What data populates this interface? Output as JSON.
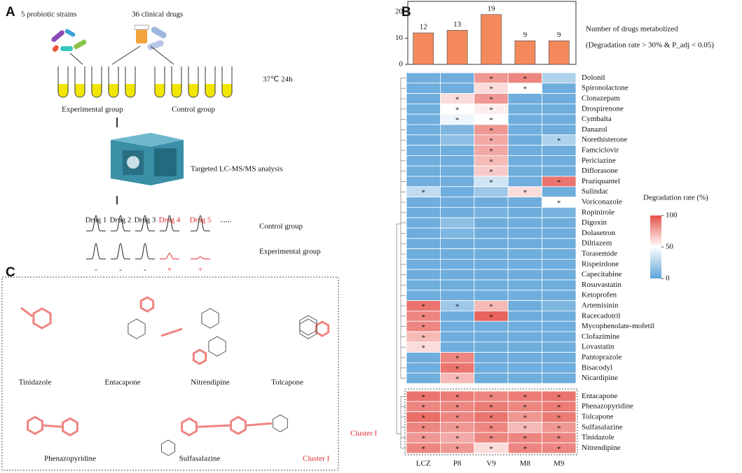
{
  "panels": {
    "a": "A",
    "b": "B",
    "c": "C"
  },
  "panel_a": {
    "strains": "5 probiotic strains",
    "drugs": "36 clinical drugs",
    "condition": "37℃  24h",
    "experimental": "Experimental group",
    "control": "Control group",
    "analysis": "Targeted LC-MS/MS analysis",
    "drug_labels": [
      "Drug 1",
      "Drug 2",
      "Drug 3",
      "Drug 4",
      "Drug 5",
      "......"
    ],
    "row_control": "Control group",
    "row_experimental": "Experimental group",
    "signs": [
      "-",
      "-",
      "-",
      "+",
      "+"
    ]
  },
  "panel_c": {
    "molecules": [
      "Tinidazole",
      "Entacapone",
      "Nitrendipine",
      "Tolcapone",
      "Phenazopyridine",
      "Sulfasalazine"
    ],
    "cluster": "Cluster  I"
  },
  "chart_data": [
    {
      "type": "bar",
      "values": [
        12,
        13,
        19,
        9,
        9
      ],
      "value_labels": [
        "12",
        "13",
        "19",
        "9",
        "9"
      ],
      "color": "#f48a5c",
      "ylim": [
        0,
        24
      ],
      "yticks": [
        0,
        10,
        20
      ],
      "title": "Number of drugs metabolized",
      "subtitle": "(Degradation rate > 30% & P_adj < 0.05)"
    },
    {
      "type": "heatmap",
      "categories": [
        "LCZ",
        "P8",
        "V9",
        "M8",
        "M9"
      ],
      "legend_title": "Degradation rate (%)",
      "clim": [
        0,
        100
      ],
      "colorbar_ticks": [
        0,
        50,
        100
      ],
      "colorscale": [
        "#5ea4d8",
        "#ffffff",
        "#e5524a"
      ],
      "groups": [
        {
          "rows": [
            "Dolonil",
            "Spironolactone",
            "Clonazepam",
            "Drospirenone",
            "Cymbalta",
            "Danazol",
            "Norethisterone",
            "Famciclovir",
            "Periciazine",
            "Diflorasone",
            "Praziquantel",
            "Sulindac",
            "Voriconazole",
            "Ropinirole",
            "Digoxin",
            "Dolasetron",
            "Diltiazem",
            "Torasemide",
            "Rispeirdone",
            "Capecitabine",
            "Rosuvastatin",
            "Ketoprofen",
            "Artemisinin",
            "Racecadotril",
            "Mycophenolate-mofetil",
            "Clofazimine",
            "Lovastatin",
            "Pantoprazole",
            "Bisacodyl",
            "Nicardipine"
          ],
          "values": [
            [
              5,
              5,
              80,
              85,
              25
            ],
            [
              5,
              5,
              60,
              50,
              5
            ],
            [
              5,
              60,
              80,
              5,
              5
            ],
            [
              5,
              50,
              55,
              5,
              5
            ],
            [
              5,
              45,
              50,
              5,
              5
            ],
            [
              5,
              10,
              80,
              5,
              5
            ],
            [
              5,
              15,
              75,
              5,
              25
            ],
            [
              5,
              5,
              75,
              5,
              5
            ],
            [
              5,
              5,
              70,
              5,
              5
            ],
            [
              5,
              5,
              65,
              5,
              5
            ],
            [
              5,
              5,
              35,
              5,
              90
            ],
            [
              30,
              5,
              20,
              60,
              5
            ],
            [
              5,
              5,
              5,
              5,
              50
            ],
            [
              5,
              5,
              8,
              5,
              8
            ],
            [
              5,
              15,
              5,
              5,
              5
            ],
            [
              5,
              10,
              5,
              5,
              5
            ],
            [
              5,
              5,
              5,
              5,
              5
            ],
            [
              5,
              5,
              5,
              5,
              5
            ],
            [
              5,
              5,
              5,
              5,
              5
            ],
            [
              5,
              5,
              5,
              5,
              5
            ],
            [
              5,
              5,
              5,
              5,
              5
            ],
            [
              5,
              5,
              5,
              5,
              5
            ],
            [
              90,
              20,
              70,
              5,
              10
            ],
            [
              85,
              5,
              95,
              5,
              5
            ],
            [
              85,
              5,
              5,
              5,
              5
            ],
            [
              70,
              5,
              5,
              5,
              5
            ],
            [
              60,
              5,
              5,
              5,
              5
            ],
            [
              5,
              85,
              5,
              5,
              5
            ],
            [
              5,
              90,
              5,
              5,
              5
            ],
            [
              5,
              70,
              5,
              5,
              5
            ]
          ],
          "annotations": [
            [
              null,
              null,
              "*",
              "*",
              null
            ],
            [
              null,
              null,
              "*",
              "*",
              null
            ],
            [
              null,
              "*",
              "*",
              null,
              null
            ],
            [
              null,
              "*",
              "*",
              null,
              null
            ],
            [
              null,
              "*",
              "*",
              null,
              null
            ],
            [
              null,
              null,
              "*",
              null,
              null
            ],
            [
              null,
              null,
              "*",
              null,
              "*"
            ],
            [
              null,
              null,
              "*",
              null,
              null
            ],
            [
              null,
              null,
              "*",
              null,
              null
            ],
            [
              null,
              null,
              "*",
              null,
              null
            ],
            [
              null,
              null,
              "*",
              null,
              "*"
            ],
            [
              "*",
              null,
              null,
              "*",
              null
            ],
            [
              null,
              null,
              null,
              null,
              "*"
            ],
            [
              null,
              null,
              null,
              null,
              null
            ],
            [
              null,
              null,
              null,
              null,
              null
            ],
            [
              null,
              null,
              null,
              null,
              null
            ],
            [
              null,
              null,
              null,
              null,
              null
            ],
            [
              null,
              null,
              null,
              null,
              null
            ],
            [
              null,
              null,
              null,
              null,
              null
            ],
            [
              null,
              null,
              null,
              null,
              null
            ],
            [
              null,
              null,
              null,
              null,
              null
            ],
            [
              null,
              null,
              null,
              null,
              null
            ],
            [
              "*",
              "*",
              "*",
              null,
              null
            ],
            [
              "*",
              null,
              "*",
              null,
              null
            ],
            [
              "*",
              null,
              null,
              null,
              null
            ],
            [
              "*",
              null,
              null,
              null,
              null
            ],
            [
              "*",
              null,
              null,
              null,
              null
            ],
            [
              null,
              "*",
              null,
              null,
              null
            ],
            [
              null,
              "*",
              null,
              null,
              null
            ],
            [
              null,
              "*",
              null,
              null,
              null
            ]
          ]
        },
        {
          "name": "Cluster  I",
          "rows": [
            "Entacapone",
            "Phenazopyridine",
            "Tolcapone",
            "Sulfasalazine",
            "Tinidazole",
            "Nitrendipine"
          ],
          "values": [
            [
              90,
              88,
              85,
              88,
              90
            ],
            [
              85,
              85,
              88,
              85,
              88
            ],
            [
              92,
              85,
              90,
              80,
              88
            ],
            [
              85,
              80,
              85,
              70,
              80
            ],
            [
              80,
              75,
              85,
              85,
              85
            ],
            [
              85,
              80,
              60,
              85,
              85
            ]
          ],
          "annotations": [
            [
              "*",
              "*",
              "*",
              "*",
              "*"
            ],
            [
              "*",
              "*",
              "*",
              "*",
              "*"
            ],
            [
              "*",
              "*",
              "*",
              "*",
              "*"
            ],
            [
              "*",
              "*",
              "*",
              "*",
              "*"
            ],
            [
              "*",
              "*",
              "*",
              "*",
              "*"
            ],
            [
              "*",
              "*",
              "*",
              "*",
              "*"
            ]
          ]
        }
      ]
    }
  ]
}
